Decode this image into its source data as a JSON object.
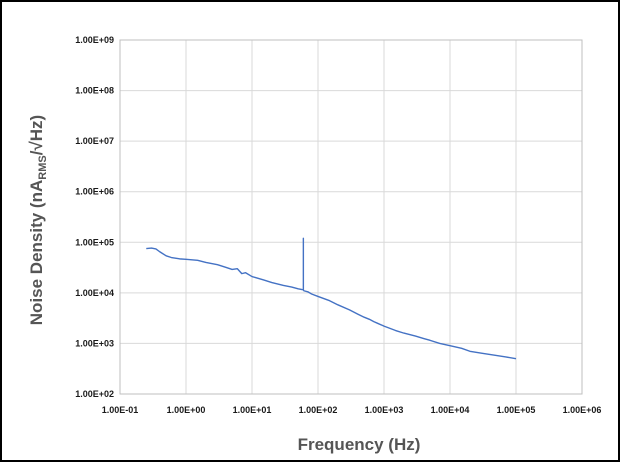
{
  "chart_data": {
    "type": "line",
    "xlabel": "Frequency (Hz)",
    "ylabel_parts": {
      "main": "Noise Density (nA",
      "sub": "RMS",
      "tail": "/√Hz)"
    },
    "x_scale": "log",
    "y_scale": "log",
    "xlim": [
      0.1,
      1000000
    ],
    "ylim": [
      100,
      1000000000
    ],
    "x_ticks": [
      "1.00E-01",
      "1.00E+00",
      "1.00E+01",
      "1.00E+02",
      "1.00E+03",
      "1.00E+04",
      "1.00E+05",
      "1.00E+06"
    ],
    "y_ticks": [
      "1.00E+02",
      "1.00E+03",
      "1.00E+04",
      "1.00E+05",
      "1.00E+06",
      "1.00E+07",
      "1.00E+08",
      "1.00E+09"
    ],
    "grid": true,
    "legend": "none",
    "series_color": "#4472c4",
    "series": [
      {
        "x": [
          0.25,
          0.3,
          0.35,
          0.4,
          0.5,
          0.6,
          0.8,
          1,
          1.5,
          2,
          3,
          4,
          5,
          6,
          7,
          8,
          10,
          15,
          20,
          30,
          40,
          50,
          60,
          60.01,
          60.02,
          61,
          70,
          80,
          100,
          150,
          200,
          300,
          400,
          500,
          600,
          700,
          800,
          1000,
          1500,
          2000,
          3000,
          4000,
          5000,
          7000,
          10000,
          15000,
          20000,
          30000,
          50000,
          70000,
          100000
        ],
        "y": [
          75000,
          77000,
          74000,
          65000,
          54000,
          50000,
          47000,
          46000,
          44000,
          40000,
          36000,
          32000,
          29000,
          30000,
          24000,
          25000,
          21000,
          18000,
          16000,
          14000,
          13000,
          12000,
          11500,
          120000,
          11500,
          11000,
          10500,
          9500,
          8500,
          7000,
          5800,
          4600,
          3800,
          3300,
          3000,
          2700,
          2500,
          2200,
          1800,
          1600,
          1400,
          1250,
          1150,
          1000,
          900,
          800,
          700,
          640,
          580,
          540,
          500
        ]
      }
    ]
  }
}
